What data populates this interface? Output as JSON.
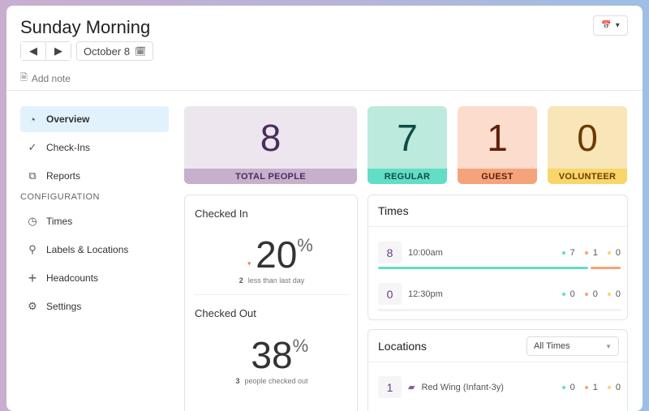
{
  "header": {
    "title": "Sunday Morning",
    "date": "October 8",
    "add_note": "Add note"
  },
  "sidebar": {
    "items": [
      {
        "label": "Overview",
        "icon": "overview-chart-icon",
        "active": true
      },
      {
        "label": "Check-Ins",
        "icon": "checkmark-icon"
      },
      {
        "label": "Reports",
        "icon": "reports-copy-icon"
      }
    ],
    "section": "CONFIGURATION",
    "config_items": [
      {
        "label": "Times",
        "icon": "clock-icon"
      },
      {
        "label": "Labels & Locations",
        "icon": "location-pin-icon"
      },
      {
        "label": "Headcounts",
        "icon": "plus-icon"
      },
      {
        "label": "Settings",
        "icon": "gear-icon"
      }
    ]
  },
  "stats": [
    {
      "value": "8",
      "label": "TOTAL PEOPLE"
    },
    {
      "value": "7",
      "label": "REGULAR"
    },
    {
      "value": "1",
      "label": "GUEST"
    },
    {
      "value": "0",
      "label": "VOLUNTEER"
    }
  ],
  "colors": {
    "regular": "#63ddc6",
    "guest": "#f5a37a",
    "volunteer": "#f8d66a",
    "total": "#c6b0cd",
    "accent": "#4a2c5e"
  },
  "checked_in": {
    "title": "Checked In",
    "value": "20",
    "unit": "%",
    "delta": "2",
    "delta_text": "less than last day"
  },
  "checked_out": {
    "title": "Checked Out",
    "value": "38",
    "unit": "%",
    "count": "3",
    "count_text": "people checked out"
  },
  "times": {
    "title": "Times",
    "rows": [
      {
        "total": "8",
        "time": "10:00am",
        "regular": "7",
        "guest": "1",
        "volunteer": "0"
      },
      {
        "total": "0",
        "time": "12:30pm",
        "regular": "0",
        "guest": "0",
        "volunteer": "0"
      }
    ]
  },
  "locations": {
    "title": "Locations",
    "filter": "All Times",
    "rows": [
      {
        "total": "1",
        "name": "Red Wing (Infant-3y)",
        "regular": "0",
        "guest": "1",
        "volunteer": "0"
      }
    ]
  }
}
